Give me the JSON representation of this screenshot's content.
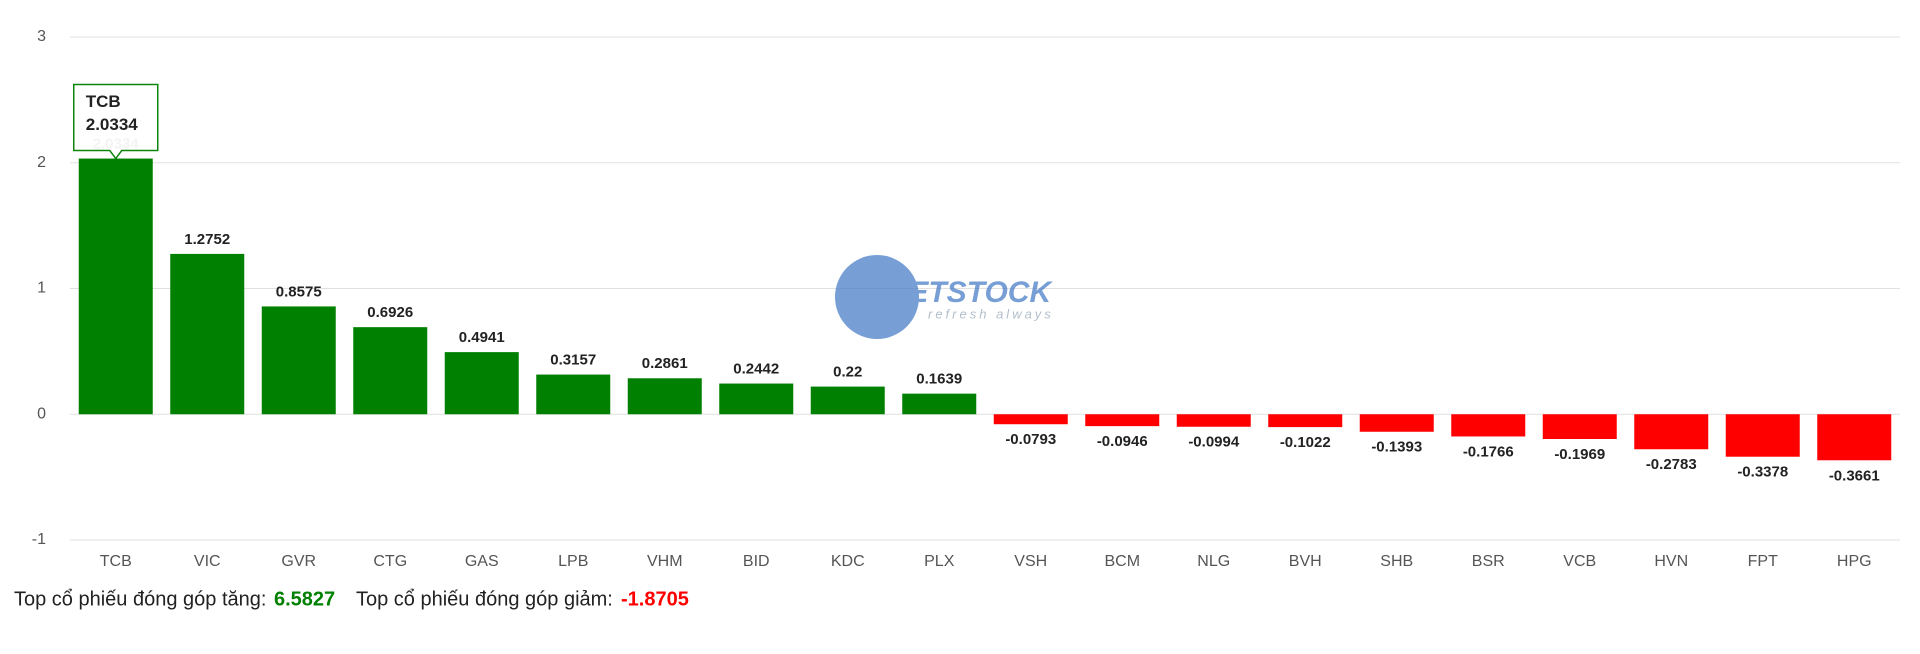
{
  "chart_data": {
    "type": "bar",
    "categories": [
      "TCB",
      "VIC",
      "GVR",
      "CTG",
      "GAS",
      "LPB",
      "VHM",
      "BID",
      "KDC",
      "PLX",
      "VSH",
      "BCM",
      "NLG",
      "BVH",
      "SHB",
      "BSR",
      "VCB",
      "HVN",
      "FPT",
      "HPG"
    ],
    "values": [
      2.0334,
      1.2752,
      0.8575,
      0.6926,
      0.4941,
      0.3157,
      0.2861,
      0.2442,
      0.22,
      0.1639,
      -0.0793,
      -0.0946,
      -0.0994,
      -0.1022,
      -0.1393,
      -0.1766,
      -0.1969,
      -0.2783,
      -0.3378,
      -0.3661
    ],
    "positive_color": "#008000",
    "negative_color": "#ff0000",
    "ylim": [
      -1,
      3
    ],
    "yticks": [
      -1,
      0,
      1,
      2,
      3
    ],
    "grid": true,
    "watermark": "VIETSTOCK",
    "watermark_tagline": "refresh always",
    "summary": {
      "up_label": "Top cổ phiếu đóng góp tăng:",
      "up_value": 6.5827,
      "down_label": "Top cổ phiếu đóng góp giảm:",
      "down_value": -1.8705
    }
  }
}
